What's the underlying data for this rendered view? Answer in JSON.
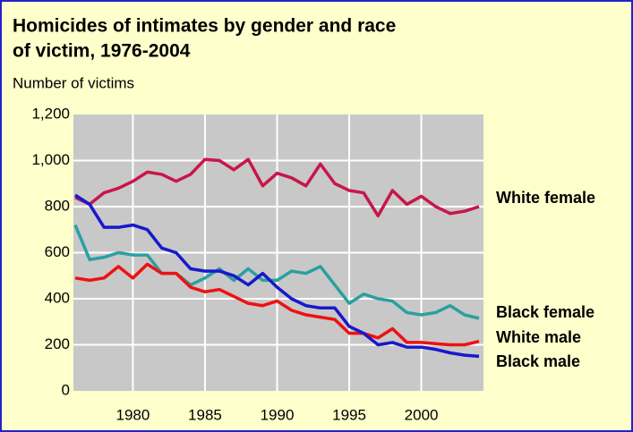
{
  "chart_data": {
    "type": "line",
    "title": [
      "Homicides of intimates by gender and race",
      "of victim, 1976-2004"
    ],
    "ylabel": "Number of victims",
    "x": [
      1976,
      1977,
      1978,
      1979,
      1980,
      1981,
      1982,
      1983,
      1984,
      1985,
      1986,
      1987,
      1988,
      1989,
      1990,
      1991,
      1992,
      1993,
      1994,
      1995,
      1996,
      1997,
      1998,
      1999,
      2000,
      2001,
      2002,
      2003,
      2004
    ],
    "series": [
      {
        "name": "White female",
        "color": "#c8164a",
        "values": [
          840,
          810,
          860,
          880,
          910,
          950,
          940,
          910,
          940,
          1005,
          1000,
          960,
          1005,
          890,
          945,
          925,
          890,
          985,
          900,
          870,
          860,
          760,
          870,
          810,
          845,
          800,
          770,
          780,
          800
        ]
      },
      {
        "name": "Black female",
        "color": "#2aa0a0",
        "values": [
          720,
          570,
          580,
          600,
          590,
          590,
          510,
          510,
          460,
          490,
          530,
          480,
          530,
          480,
          480,
          520,
          510,
          540,
          460,
          380,
          420,
          400,
          390,
          340,
          330,
          340,
          370,
          330,
          315
        ]
      },
      {
        "name": "White male",
        "color": "#ee1111",
        "values": [
          490,
          480,
          490,
          540,
          490,
          550,
          510,
          510,
          450,
          430,
          440,
          410,
          380,
          370,
          390,
          350,
          330,
          320,
          310,
          250,
          250,
          230,
          270,
          210,
          210,
          205,
          200,
          200,
          215
        ]
      },
      {
        "name": "Black male",
        "color": "#1818cc",
        "values": [
          850,
          810,
          710,
          710,
          720,
          700,
          620,
          600,
          530,
          520,
          520,
          500,
          460,
          510,
          450,
          400,
          370,
          360,
          360,
          280,
          250,
          200,
          210,
          190,
          190,
          180,
          165,
          155,
          150
        ]
      }
    ],
    "xlim": [
      1976,
      2004
    ],
    "ylim": [
      0,
      1200
    ],
    "xticks": [
      1980,
      1985,
      1990,
      1995,
      2000
    ],
    "yticks": [
      0,
      200,
      400,
      600,
      800,
      {
        "value": 1000,
        "label": "1,000"
      },
      {
        "value": 1200,
        "label": "1,200"
      }
    ],
    "grid": true
  }
}
